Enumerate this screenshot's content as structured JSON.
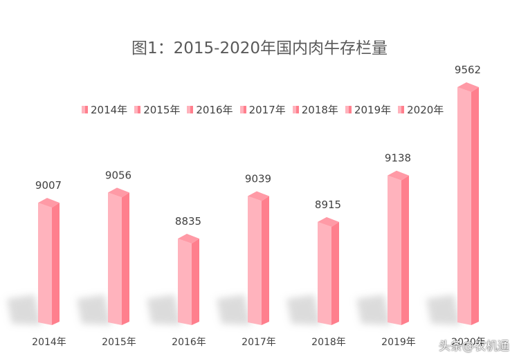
{
  "chart_data": {
    "type": "bar",
    "title": "图1：2015-2020年国内肉牛存栏量",
    "categories": [
      "2014年",
      "2015年",
      "2016年",
      "2017年",
      "2018年",
      "2019年",
      "2020年"
    ],
    "values": [
      9007,
      9056,
      8835,
      9039,
      8915,
      9138,
      9562
    ],
    "legend": [
      "2014年",
      "2015年",
      "2016年",
      "2017年",
      "2018年",
      "2019年",
      "2020年"
    ],
    "legend_position": "top",
    "grid": false,
    "bar_style": "3d-prism",
    "colors": {
      "bar_front": "#ffb3bd",
      "bar_side": "#ff7f8d",
      "bar_top": "#ff9aa6",
      "shadow": "#bfbfbf"
    }
  },
  "watermark": "头条@农机通"
}
